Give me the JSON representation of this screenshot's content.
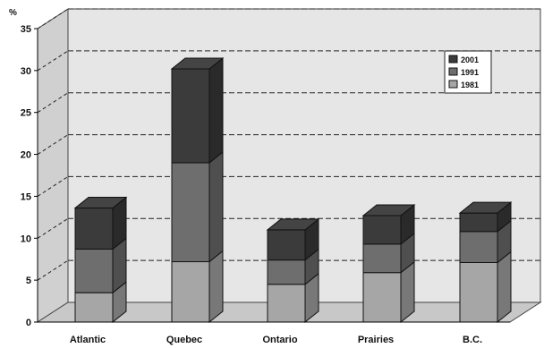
{
  "chart_data": {
    "type": "bar",
    "stacked": true,
    "style": "3d",
    "ylabel": "%",
    "ylim": [
      0,
      35
    ],
    "yticks": [
      0,
      5,
      10,
      15,
      20,
      25,
      30,
      35
    ],
    "grid": true,
    "legend_position": "top-right",
    "categories": [
      "Atlantic",
      "Quebec",
      "Ontario",
      "Prairies",
      "B.C."
    ],
    "series": [
      {
        "name": "1981",
        "values": [
          3.5,
          7.2,
          4.5,
          5.9,
          7.1
        ],
        "color": "#a6a6a6"
      },
      {
        "name": "1991",
        "values": [
          5.2,
          11.8,
          2.9,
          3.4,
          3.7
        ],
        "color": "#6e6e6e"
      },
      {
        "name": "2001",
        "values": [
          4.9,
          11.2,
          3.6,
          3.4,
          2.2
        ],
        "color": "#3b3b3b"
      }
    ],
    "legend_order": [
      "2001",
      "1991",
      "1981"
    ]
  }
}
